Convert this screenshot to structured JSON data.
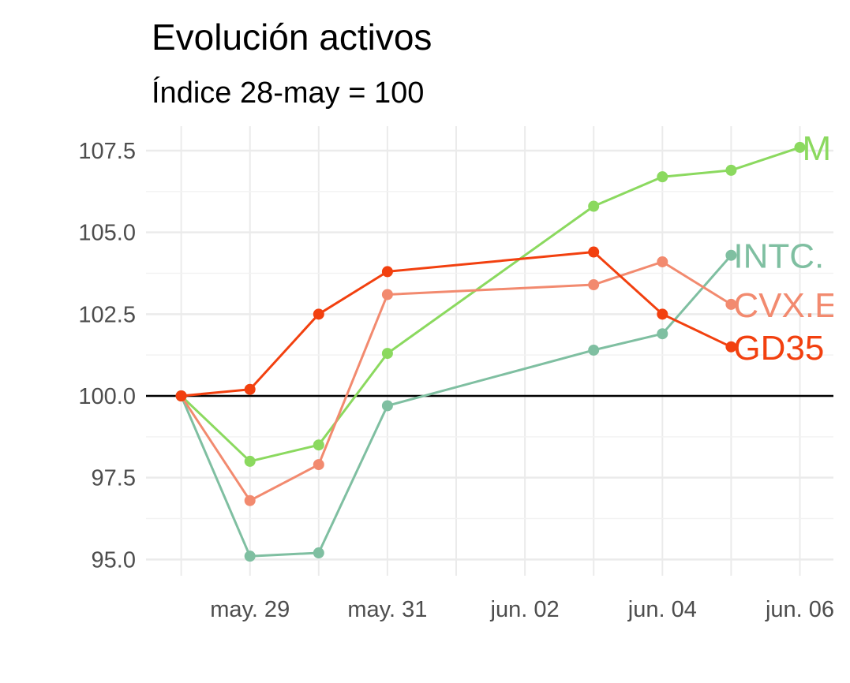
{
  "chart_data": {
    "type": "line",
    "title": "Evolución activos",
    "subtitle": "Índice 28-may = 100",
    "xlabel": "",
    "ylabel": "",
    "x": [
      "2019-05-28",
      "2019-05-29",
      "2019-05-30",
      "2019-05-31",
      "2019-06-03",
      "2019-06-04",
      "2019-06-05",
      "2019-06-06"
    ],
    "x_ticks": [
      "may. 29",
      "may. 31",
      "jun. 02",
      "jun. 04",
      "jun. 06"
    ],
    "x_tick_dates": [
      "2019-05-29",
      "2019-05-31",
      "2019-06-02",
      "2019-06-04",
      "2019-06-06"
    ],
    "xlim": [
      "2019-05-27",
      "2019-06-06"
    ],
    "y_ticks": [
      "95.0",
      "97.5",
      "100.0",
      "102.5",
      "105.0",
      "107.5"
    ],
    "ylim": [
      94.6,
      108.2
    ],
    "reference_line": 100,
    "grid": true,
    "legend": "none",
    "series": [
      {
        "name": "M",
        "color": "#8bd95f",
        "points": [
          {
            "x": "2019-05-28",
            "y": 100.0
          },
          {
            "x": "2019-05-29",
            "y": 98.0
          },
          {
            "x": "2019-05-30",
            "y": 98.5
          },
          {
            "x": "2019-05-31",
            "y": 101.3
          },
          {
            "x": "2019-06-03",
            "y": 105.8
          },
          {
            "x": "2019-06-04",
            "y": 106.7
          },
          {
            "x": "2019-06-05",
            "y": 106.9
          },
          {
            "x": "2019-06-06",
            "y": 107.6
          }
        ]
      },
      {
        "name": "INTC.",
        "color": "#7fbfa1",
        "points": [
          {
            "x": "2019-05-28",
            "y": 100.0
          },
          {
            "x": "2019-05-29",
            "y": 95.1
          },
          {
            "x": "2019-05-30",
            "y": 95.2
          },
          {
            "x": "2019-05-31",
            "y": 99.7
          },
          {
            "x": "2019-06-03",
            "y": 101.4
          },
          {
            "x": "2019-06-04",
            "y": 101.9
          },
          {
            "x": "2019-06-05",
            "y": 104.3
          }
        ]
      },
      {
        "name": "CVX.E",
        "color": "#f28a6f",
        "points": [
          {
            "x": "2019-05-28",
            "y": 100.0
          },
          {
            "x": "2019-05-29",
            "y": 96.8
          },
          {
            "x": "2019-05-30",
            "y": 97.9
          },
          {
            "x": "2019-05-31",
            "y": 103.1
          },
          {
            "x": "2019-06-03",
            "y": 103.4
          },
          {
            "x": "2019-06-04",
            "y": 104.1
          },
          {
            "x": "2019-06-05",
            "y": 102.8
          }
        ]
      },
      {
        "name": "GD35",
        "color": "#f2400f",
        "points": [
          {
            "x": "2019-05-28",
            "y": 100.0
          },
          {
            "x": "2019-05-29",
            "y": 100.2
          },
          {
            "x": "2019-05-30",
            "y": 102.5
          },
          {
            "x": "2019-05-31",
            "y": 103.8
          },
          {
            "x": "2019-06-03",
            "y": 104.4
          },
          {
            "x": "2019-06-04",
            "y": 102.5
          },
          {
            "x": "2019-06-05",
            "y": 101.5
          }
        ]
      }
    ]
  }
}
